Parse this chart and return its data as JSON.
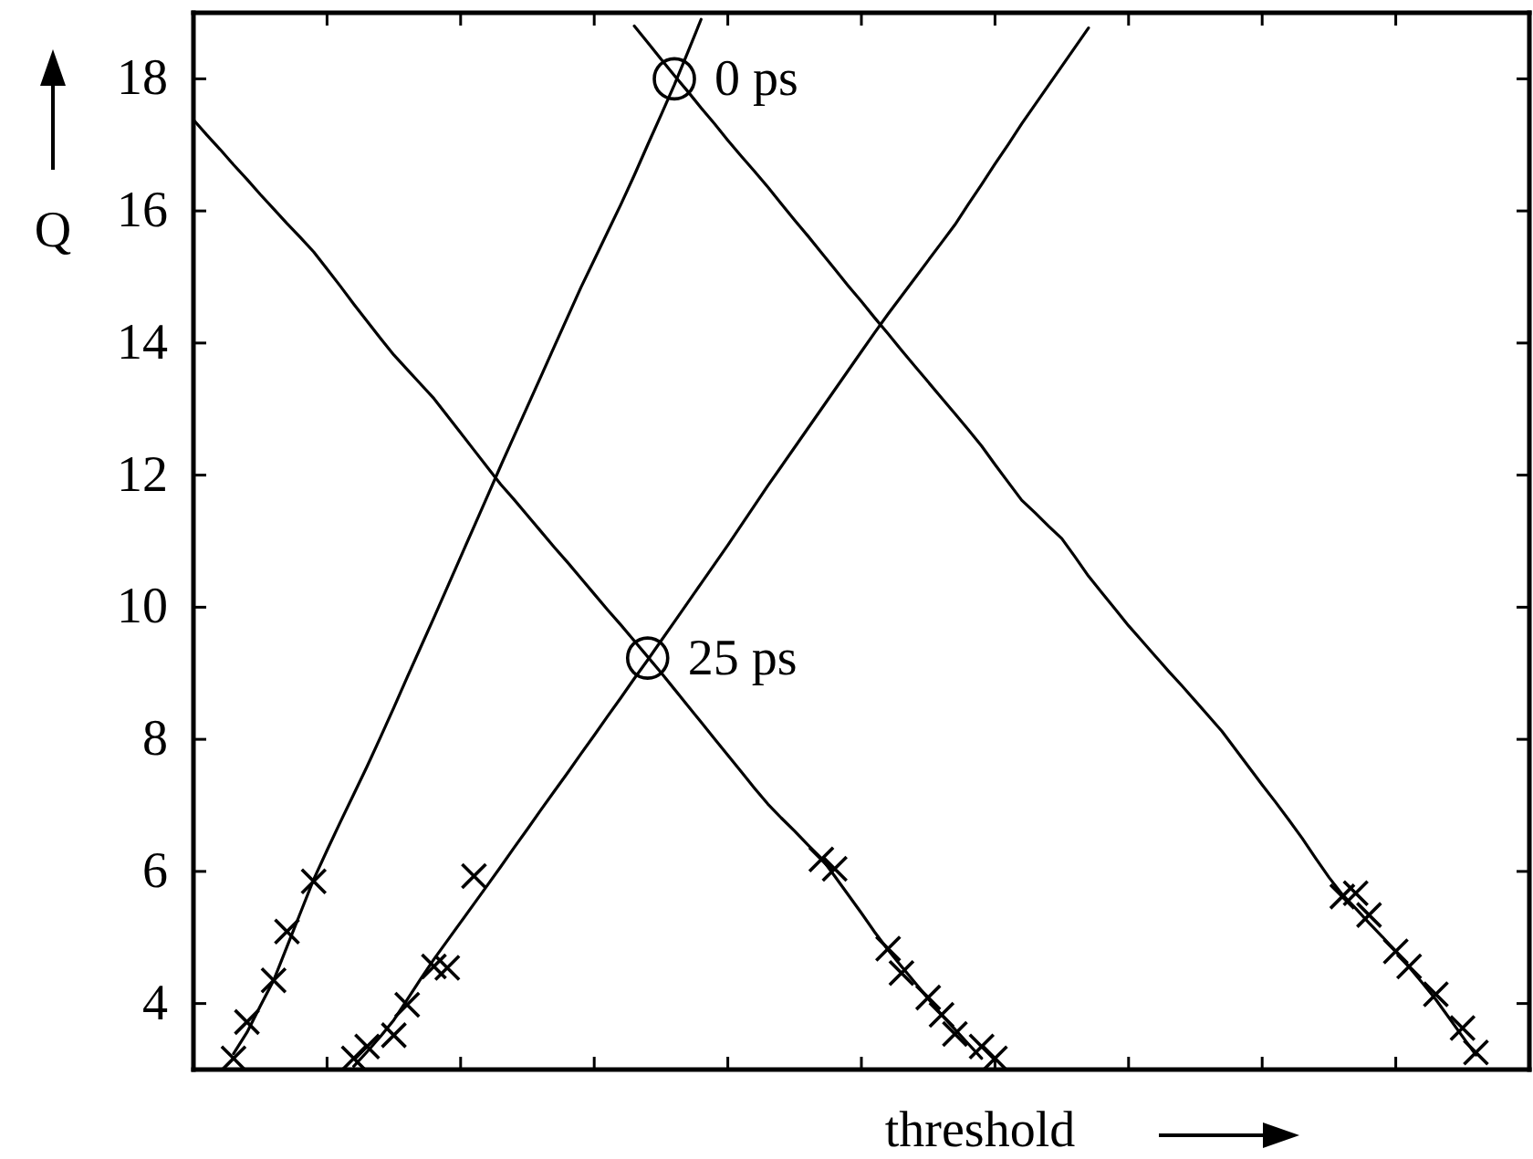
{
  "chart_data": {
    "type": "line",
    "xlabel": "threshold",
    "ylabel": "Q",
    "categories": [
      null,
      null,
      null,
      null,
      null,
      null,
      null,
      null,
      null,
      null,
      null,
      null,
      null,
      null,
      null,
      null,
      null,
      null,
      null,
      null,
      null,
      null,
      null,
      null,
      null,
      null,
      null,
      null,
      null,
      null,
      null,
      null,
      null,
      null,
      null,
      null,
      null,
      null,
      null,
      null,
      null,
      null,
      null,
      null,
      null,
      null,
      null,
      null,
      null,
      null,
      null,
      null,
      null,
      null,
      null,
      null,
      null,
      null,
      null,
      null,
      null,
      null,
      null,
      null,
      null,
      null,
      null,
      null,
      null,
      null,
      null,
      null,
      null,
      null,
      null,
      null,
      null,
      null,
      null,
      null,
      null,
      null,
      null,
      null,
      null,
      null,
      null,
      null,
      null,
      null,
      null,
      null,
      null,
      null,
      null,
      null,
      null,
      null,
      null,
      null,
      null
    ],
    "ylim": [
      3,
      19
    ],
    "yticks": [
      4,
      6,
      8,
      10,
      12,
      14,
      16,
      18
    ],
    "tick_labels": "y",
    "marker": "none",
    "series": [
      {
        "color": "#000000",
        "values": [
          null,
          null,
          null,
          3.24,
          3.56,
          3.96,
          4.35,
          4.86,
          5.37,
          5.88,
          6.32,
          6.75,
          7.17,
          7.59,
          8.03,
          8.48,
          8.94,
          9.39,
          9.84,
          10.3,
          10.76,
          11.22,
          11.68,
          12.14,
          12.59,
          13.04,
          13.49,
          13.94,
          14.39,
          14.84,
          15.26,
          15.68,
          16.1,
          16.54,
          17.0,
          17.45,
          17.91,
          18.4,
          18.9,
          null,
          null,
          null,
          null,
          null,
          null,
          null,
          null,
          null,
          null,
          null,
          null,
          null,
          null,
          null,
          null,
          null,
          null,
          null,
          null,
          null,
          null,
          null,
          null,
          null,
          null,
          null,
          null,
          null,
          null,
          null,
          null,
          null,
          null,
          null,
          null,
          null,
          null,
          null,
          null,
          null,
          null,
          null,
          null,
          null,
          null,
          null,
          null,
          null,
          null,
          null,
          null,
          null,
          null,
          null,
          null,
          null,
          null,
          null,
          null,
          null,
          null
        ]
      },
      {
        "color": "#000000",
        "values": [
          null,
          null,
          null,
          null,
          null,
          null,
          null,
          null,
          null,
          null,
          null,
          null,
          3.05,
          3.27,
          3.5,
          3.75,
          4.06,
          4.37,
          4.67,
          4.95,
          5.23,
          5.51,
          5.79,
          6.07,
          6.36,
          6.64,
          6.93,
          7.21,
          7.49,
          7.78,
          8.06,
          8.35,
          8.63,
          8.92,
          9.2,
          9.49,
          9.78,
          10.07,
          10.36,
          10.65,
          10.94,
          11.24,
          11.54,
          11.84,
          12.13,
          12.42,
          12.71,
          13.0,
          13.29,
          13.58,
          13.87,
          14.16,
          14.44,
          14.71,
          14.98,
          15.25,
          15.52,
          15.79,
          16.1,
          16.4,
          16.71,
          17.01,
          17.32,
          17.61,
          17.9,
          18.19,
          18.48,
          18.77,
          null,
          null,
          null,
          null,
          null,
          null,
          null,
          null,
          null,
          null,
          null,
          null,
          null,
          null,
          null,
          null,
          null,
          null,
          null,
          null,
          null,
          null,
          null,
          null,
          null,
          null,
          null,
          null,
          null,
          null,
          null,
          null,
          null
        ]
      },
      {
        "color": "#000000",
        "values": [
          17.38,
          17.15,
          16.93,
          16.7,
          16.48,
          16.25,
          16.03,
          15.81,
          15.6,
          15.38,
          15.12,
          14.86,
          14.59,
          14.33,
          14.07,
          13.82,
          13.6,
          13.38,
          13.16,
          12.9,
          12.64,
          12.38,
          12.12,
          11.86,
          11.63,
          11.39,
          11.15,
          10.91,
          10.68,
          10.44,
          10.2,
          9.96,
          9.73,
          9.49,
          9.25,
          9.01,
          8.76,
          8.51,
          8.26,
          8.01,
          7.76,
          7.51,
          7.26,
          7.02,
          6.81,
          6.61,
          6.4,
          6.2,
          5.93,
          5.65,
          5.37,
          5.08,
          4.81,
          4.56,
          4.32,
          4.07,
          3.83,
          3.61,
          3.39,
          3.17,
          null,
          null,
          null,
          null,
          null,
          null,
          null,
          null,
          null,
          null,
          null,
          null,
          null,
          null,
          null,
          null,
          null,
          null,
          null,
          null,
          null,
          null,
          null,
          null,
          null,
          null,
          null,
          null,
          null,
          null,
          null,
          null,
          null,
          null,
          null,
          null,
          null,
          null,
          null,
          null,
          null
        ]
      },
      {
        "color": "#000000",
        "values": [
          null,
          null,
          null,
          null,
          null,
          null,
          null,
          null,
          null,
          null,
          null,
          null,
          null,
          null,
          null,
          null,
          null,
          null,
          null,
          null,
          null,
          null,
          null,
          null,
          null,
          null,
          null,
          null,
          null,
          null,
          null,
          null,
          null,
          18.8,
          18.55,
          18.3,
          18.05,
          17.81,
          17.56,
          17.32,
          17.07,
          16.83,
          16.6,
          16.36,
          16.11,
          15.86,
          15.62,
          15.37,
          15.12,
          14.87,
          14.63,
          14.38,
          14.14,
          13.89,
          13.65,
          13.41,
          13.17,
          12.93,
          12.69,
          12.44,
          12.16,
          11.89,
          11.62,
          11.43,
          11.23,
          11.04,
          10.76,
          10.47,
          10.22,
          9.97,
          9.72,
          9.49,
          9.26,
          9.03,
          8.81,
          8.58,
          8.35,
          8.12,
          7.85,
          7.58,
          7.31,
          7.05,
          6.78,
          6.5,
          6.2,
          5.91,
          5.65,
          5.44,
          5.22,
          5.01,
          4.79,
          4.55,
          4.31,
          4.06,
          3.78,
          3.5,
          3.22,
          null,
          null,
          null,
          null
        ]
      },
      {
        "type": "scatter",
        "color": "#000000",
        "marker": "cross",
        "values": [
          null,
          null,
          null,
          3.17,
          3.72,
          null,
          4.35,
          5.09,
          null,
          5.85,
          null,
          null,
          3.17,
          3.35,
          null,
          3.52,
          3.98,
          null,
          4.56,
          4.54,
          null,
          5.93,
          null,
          null,
          null,
          null,
          null,
          null,
          null,
          null,
          null,
          null,
          null,
          null,
          null,
          null,
          null,
          null,
          null,
          null,
          null,
          null,
          null,
          null,
          null,
          null,
          null,
          6.18,
          6.04,
          null,
          null,
          null,
          4.83,
          4.46,
          null,
          4.09,
          3.83,
          3.54,
          null,
          3.35,
          3.17,
          null,
          null,
          null,
          null,
          null,
          null,
          null,
          null,
          null,
          null,
          null,
          null,
          null,
          null,
          null,
          null,
          null,
          null,
          null,
          null,
          null,
          null,
          null,
          null,
          null,
          5.62,
          5.67,
          5.34,
          null,
          4.79,
          4.56,
          null,
          4.14,
          null,
          3.63,
          3.26,
          null,
          null,
          null,
          null
        ]
      },
      {
        "type": "scatter",
        "color": "#000000",
        "marker": "circle",
        "values": [
          null,
          null,
          null,
          null,
          null,
          null,
          null,
          null,
          null,
          null,
          null,
          null,
          null,
          null,
          null,
          null,
          null,
          null,
          null,
          null,
          null,
          null,
          null,
          null,
          null,
          null,
          null,
          null,
          null,
          null,
          null,
          null,
          null,
          null,
          9.23,
          null,
          18.0,
          null,
          null,
          null,
          null,
          null,
          null,
          null,
          null,
          null,
          null,
          null,
          null,
          null,
          null,
          null,
          null,
          null,
          null,
          null,
          null,
          null,
          null,
          null,
          null,
          null,
          null,
          null,
          null,
          null,
          null,
          null,
          null,
          null,
          null,
          null,
          null,
          null,
          null,
          null,
          null,
          null,
          null,
          null,
          null,
          null,
          null,
          null,
          null,
          null,
          null,
          null,
          null,
          null,
          null,
          null,
          null,
          null,
          null,
          null,
          null,
          null,
          null,
          null,
          null
        ]
      }
    ],
    "annotations": [
      "0 ps",
      "25 ps"
    ]
  }
}
